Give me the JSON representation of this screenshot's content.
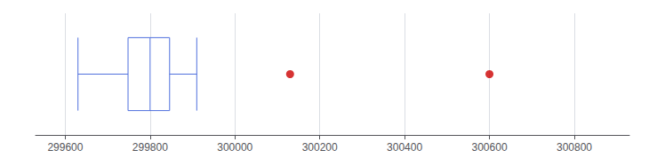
{
  "chart_data": {
    "type": "boxplot",
    "xlim": [
      299530,
      300930
    ],
    "xticks": [
      299600,
      299800,
      300000,
      300200,
      300400,
      300600,
      300800
    ],
    "box": {
      "whisker_low": 299630,
      "q1": 299748,
      "median": 299800,
      "q3": 299846,
      "whisker_high": 299910
    },
    "outliers": {
      "values": [
        300130,
        300600
      ],
      "color": "#cc0000"
    },
    "grid": true,
    "tick_labels": "x"
  }
}
